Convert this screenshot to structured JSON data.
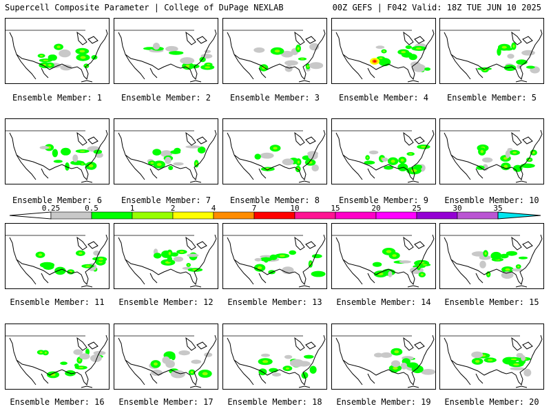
{
  "header": {
    "title_left": "Supercell Composite Parameter | College of DuPage NEXLAB",
    "title_right": "00Z GEFS | F042 Valid: 18Z TUE JUN 10 2025"
  },
  "panels": [
    {
      "label": "Ensemble Member: 1"
    },
    {
      "label": "Ensemble Member: 2"
    },
    {
      "label": "Ensemble Member: 3"
    },
    {
      "label": "Ensemble Member: 4"
    },
    {
      "label": "Ensemble Member: 5"
    },
    {
      "label": "Ensemble Member: 6"
    },
    {
      "label": "Ensemble Member: 7"
    },
    {
      "label": "Ensemble Member: 8"
    },
    {
      "label": "Ensemble Member: 9"
    },
    {
      "label": "Ensemble Member: 10"
    },
    {
      "label": "Ensemble Member: 11"
    },
    {
      "label": "Ensemble Member: 12"
    },
    {
      "label": "Ensemble Member: 13"
    },
    {
      "label": "Ensemble Member: 14"
    },
    {
      "label": "Ensemble Member: 15"
    },
    {
      "label": "Ensemble Member: 16"
    },
    {
      "label": "Ensemble Member: 17"
    },
    {
      "label": "Ensemble Member: 18"
    },
    {
      "label": "Ensemble Member: 19"
    },
    {
      "label": "Ensemble Member: 20"
    }
  ],
  "colorbar": {
    "labels": [
      "0.25",
      "0.5",
      "1",
      "2",
      "4",
      "7",
      "10",
      "15",
      "20",
      "25",
      "30",
      "35"
    ],
    "colors": [
      "#c8c8c8",
      "#00ff00",
      "#96ff00",
      "#ffff00",
      "#ff8c00",
      "#ff0000",
      "#ff1493",
      "#ff00c8",
      "#ff00ff",
      "#9400d3",
      "#ba55d3",
      "#00e5ee"
    ]
  }
}
